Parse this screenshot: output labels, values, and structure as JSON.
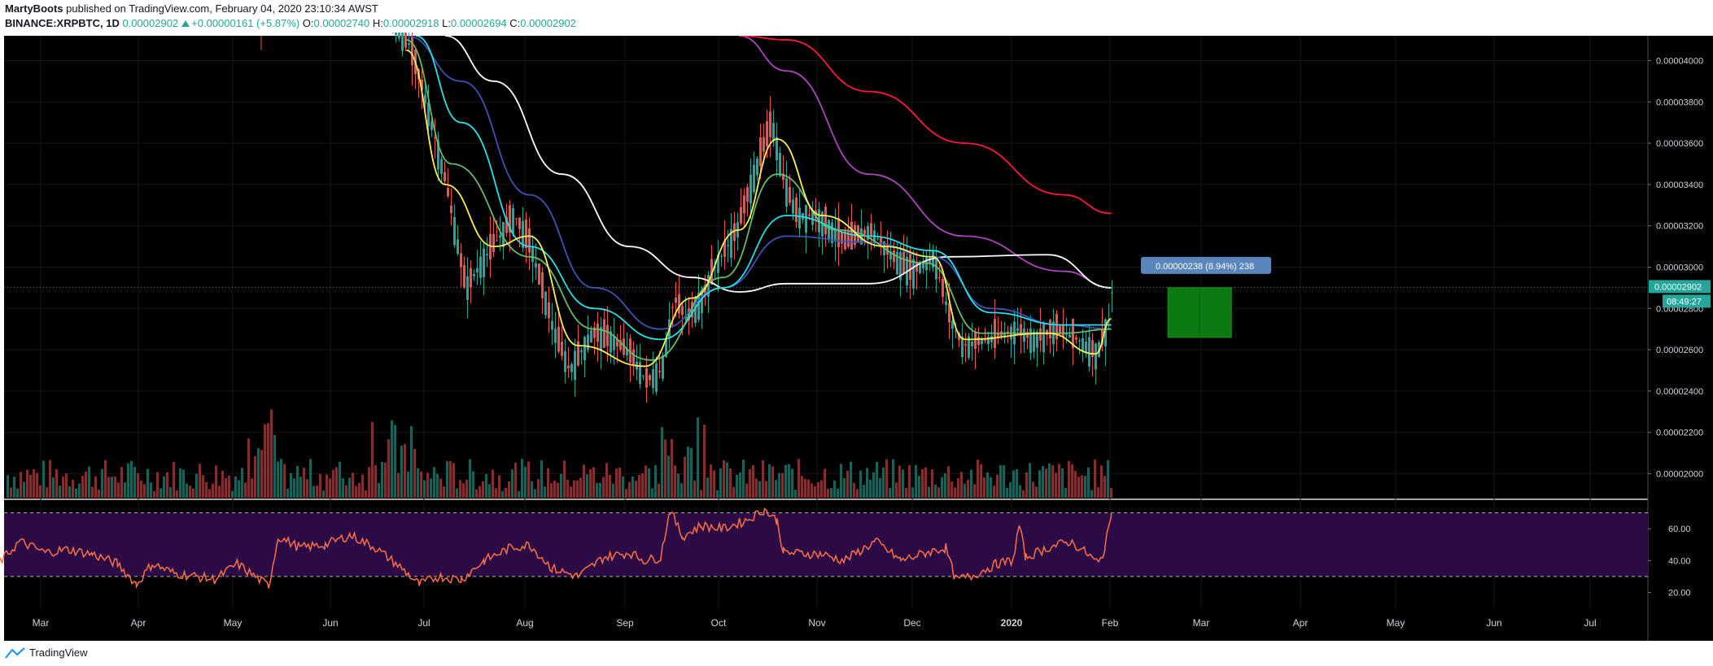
{
  "header": {
    "author": "MartyBoots",
    "published": "published on TradingView.com, February 04, 2020 23:10:34 AWST",
    "symbol": "BINANCE:XRPBTC, 1D",
    "last": "0.00002902",
    "change": "+0.00000161 (+5.87%)",
    "o_label": "O:",
    "o_value": "0.00002740",
    "h_label": "H:",
    "h_value": "0.00002918",
    "l_label": "L:",
    "l_value": "0.00002694",
    "c_label": "C:",
    "c_value": "0.00002902"
  },
  "footer": {
    "brand": "TradingView"
  },
  "colors": {
    "background": "#000000",
    "up": "#26a69a",
    "down": "#ef5350",
    "rsi_band": "#2b0a45",
    "rsi_line": "#ff7043",
    "ema_yellow": "#ffee58",
    "ema_green": "#66bb6a",
    "ema_cyan": "#26e0e8",
    "ema_blue": "#3f51b5",
    "ma_white": "#ffffff",
    "ma_purple": "#ab47bc",
    "ma_red": "#ff1744"
  },
  "chart_data": {
    "type": "candlestick",
    "price_axis": {
      "ticks": [
        "0.00004000",
        "0.00003800",
        "0.00003600",
        "0.00003400",
        "0.00003200",
        "0.00003000",
        "0.00002800",
        "0.00002600",
        "0.00002400",
        "0.00002200",
        "0.00002000"
      ],
      "range": [
        1.88e-05,
        4.12e-05
      ],
      "current_price_label": "0.00002902",
      "countdown_label": "08:49:27"
    },
    "rsi_axis": {
      "ticks": [
        "60.00",
        "40.00",
        "20.00"
      ],
      "range": [
        10,
        78
      ],
      "band": [
        30,
        70
      ]
    },
    "x_labels": [
      "Mar",
      "Apr",
      "May",
      "Jun",
      "Jul",
      "Aug",
      "Sep",
      "Oct",
      "Nov",
      "Dec",
      "2020",
      "Feb",
      "Mar",
      "Apr",
      "May",
      "Jun",
      "Jul"
    ],
    "price_path": [
      [
        "Jun 20",
        4.25e-05
      ],
      [
        "Jun 28",
        4.1e-05
      ],
      [
        "Jul 3",
        3.85e-05
      ],
      [
        "Jul 10",
        3.4e-05
      ],
      [
        "Jul 16",
        2.9e-05
      ],
      [
        "Jul 22",
        3.05e-05
      ],
      [
        "Jul 31",
        3.25e-05
      ],
      [
        "Aug 5",
        3.1e-05
      ],
      [
        "Aug 12",
        2.7e-05
      ],
      [
        "Aug 17",
        2.5e-05
      ],
      [
        "Aug 24",
        2.68e-05
      ],
      [
        "Aug 30",
        2.65e-05
      ],
      [
        "Sep 5",
        2.58e-05
      ],
      [
        "Sep 10",
        2.45e-05
      ],
      [
        "Sep 15",
        2.5e-05
      ],
      [
        "Sep 19",
        2.85e-05
      ],
      [
        "Sep 23",
        2.75e-05
      ],
      [
        "Sep 28",
        2.85e-05
      ],
      [
        "Oct 2",
        3e-05
      ],
      [
        "Oct 9",
        3.18e-05
      ],
      [
        "Oct 15",
        3.48e-05
      ],
      [
        "Oct 20",
        3.7e-05
      ],
      [
        "Oct 24",
        3.4e-05
      ],
      [
        "Oct 28",
        3.25e-05
      ],
      [
        "Nov 3",
        3.25e-05
      ],
      [
        "Nov 12",
        3.12e-05
      ],
      [
        "Nov 20",
        3.18e-05
      ],
      [
        "Nov 27",
        3.05e-05
      ],
      [
        "Dec 3",
        2.98e-05
      ],
      [
        "Dec 10",
        3.05e-05
      ],
      [
        "Dec 15",
        2.75e-05
      ],
      [
        "Dec 19",
        2.62e-05
      ],
      [
        "Dec 27",
        2.65e-05
      ],
      [
        "Jan 5",
        2.7e-05
      ],
      [
        "Jan 10",
        2.65e-05
      ],
      [
        "Jan 17",
        2.7e-05
      ],
      [
        "Jan 24",
        2.65e-05
      ],
      [
        "Jan 30",
        2.58e-05
      ],
      [
        "Feb 3",
        2.75e-05
      ],
      [
        "Feb 4",
        2.9e-05
      ]
    ],
    "moving_averages": [
      {
        "color": "#ab47bc",
        "points": [
          [
            "Oct 10",
            4.2e-05
          ],
          [
            "Oct 25",
            3.95e-05
          ],
          [
            "Nov 20",
            3.45e-05
          ],
          [
            "Dec 20",
            3.15e-05
          ],
          [
            "Jan 20",
            2.98e-05
          ],
          [
            "Feb 4",
            2.9e-05
          ]
        ]
      },
      {
        "color": "#ff1744",
        "points": [
          [
            "Oct 10",
            4.2e-05
          ],
          [
            "Oct 25",
            4.1e-05
          ],
          [
            "Nov 20",
            3.85e-05
          ],
          [
            "Dec 20",
            3.6e-05
          ],
          [
            "Jan 20",
            3.35e-05
          ],
          [
            "Feb 4",
            3.26e-05
          ]
        ]
      },
      {
        "color": "#ffffff",
        "points": [
          [
            "Jul 10",
            4.2e-05
          ],
          [
            "Jul 25",
            3.9e-05
          ],
          [
            "Aug 15",
            3.45e-05
          ],
          [
            "Sep 5",
            3.1e-05
          ],
          [
            "Sep 25",
            2.95e-05
          ],
          [
            "Oct 10",
            2.88e-05
          ],
          [
            "Oct 25",
            2.92e-05
          ],
          [
            "Nov 20",
            2.92e-05
          ],
          [
            "Dec 15",
            3.05e-05
          ],
          [
            "Jan 15",
            3.06e-05
          ],
          [
            "Feb 4",
            2.9e-05
          ]
        ]
      },
      {
        "color": "#3f51b5",
        "points": [
          [
            "Jun 28",
            4.25e-05
          ],
          [
            "Jul 15",
            3.9e-05
          ],
          [
            "Aug 5",
            3.35e-05
          ],
          [
            "Aug 25",
            2.9e-05
          ],
          [
            "Sep 15",
            2.7e-05
          ],
          [
            "Oct 5",
            2.9e-05
          ],
          [
            "Oct 25",
            3.15e-05
          ],
          [
            "Nov 20",
            3.12e-05
          ],
          [
            "Dec 10",
            3.05e-05
          ],
          [
            "Dec 28",
            2.8e-05
          ],
          [
            "Jan 20",
            2.72e-05
          ],
          [
            "Feb 4",
            2.7e-05
          ]
        ]
      },
      {
        "color": "#26e0e8",
        "points": [
          [
            "Jul 1",
            4.2e-05
          ],
          [
            "Jul 15",
            3.7e-05
          ],
          [
            "Aug 5",
            3.1e-05
          ],
          [
            "Aug 25",
            2.8e-05
          ],
          [
            "Sep 15",
            2.65e-05
          ],
          [
            "Oct 5",
            2.9e-05
          ],
          [
            "Oct 25",
            3.25e-05
          ],
          [
            "Nov 20",
            3.15e-05
          ],
          [
            "Dec 10",
            3.08e-05
          ],
          [
            "Dec 28",
            2.78e-05
          ],
          [
            "Jan 20",
            2.72e-05
          ],
          [
            "Feb 4",
            2.72e-05
          ]
        ]
      },
      {
        "color": "#66bb6a",
        "points": [
          [
            "Jun 28",
            4.1e-05
          ],
          [
            "Jul 12",
            3.5e-05
          ],
          [
            "Aug 5",
            3.05e-05
          ],
          [
            "Aug 25",
            2.7e-05
          ],
          [
            "Sep 12",
            2.55e-05
          ],
          [
            "Oct 5",
            2.95e-05
          ],
          [
            "Oct 22",
            3.45e-05
          ],
          [
            "Nov 10",
            3.18e-05
          ],
          [
            "Dec 8",
            3.02e-05
          ],
          [
            "Dec 25",
            2.68e-05
          ],
          [
            "Jan 20",
            2.68e-05
          ],
          [
            "Feb 4",
            2.7e-05
          ]
        ]
      },
      {
        "color": "#ffee58",
        "points": [
          [
            "Jun 28",
            4.05e-05
          ],
          [
            "Jul 10",
            3.4e-05
          ],
          [
            "Jul 25",
            3.1e-05
          ],
          [
            "Aug 5",
            3.15e-05
          ],
          [
            "Aug 20",
            2.62e-05
          ],
          [
            "Sep 10",
            2.52e-05
          ],
          [
            "Sep 25",
            2.85e-05
          ],
          [
            "Oct 10",
            3.18e-05
          ],
          [
            "Oct 22",
            3.62e-05
          ],
          [
            "Nov 5",
            3.25e-05
          ],
          [
            "Nov 25",
            3.1e-05
          ],
          [
            "Dec 10",
            3.05e-05
          ],
          [
            "Dec 20",
            2.65e-05
          ],
          [
            "Jan 15",
            2.68e-05
          ],
          [
            "Jan 30",
            2.58e-05
          ],
          [
            "Feb 4",
            2.75e-05
          ]
        ]
      }
    ],
    "measure_box": {
      "label": "0.00000238 (8.94%) 238",
      "from": [
        "Feb 22",
        2.9e-05
      ],
      "to": [
        "Mar 13",
        2.66e-05
      ]
    },
    "rsi_path": [
      [
        "Feb 22",
        38
      ],
      [
        "Feb 27",
        52
      ],
      [
        "Mar 5",
        45
      ],
      [
        "Mar 12",
        47
      ],
      [
        "Mar 20",
        44
      ],
      [
        "Mar 28",
        38
      ],
      [
        "Apr 3",
        25
      ],
      [
        "Apr 8",
        38
      ],
      [
        "Apr 15",
        32
      ],
      [
        "Apr 22",
        30
      ],
      [
        "Apr 28",
        28
      ],
      [
        "May 5",
        38
      ],
      [
        "May 12",
        28
      ],
      [
        "May 15",
        24
      ],
      [
        "May 18",
        55
      ],
      [
        "May 25",
        48
      ],
      [
        "Jun 2",
        50
      ],
      [
        "Jun 10",
        56
      ],
      [
        "Jun 18",
        48
      ],
      [
        "Jun 26",
        36
      ],
      [
        "Jul 2",
        25
      ],
      [
        "Jul 8",
        30
      ],
      [
        "Jul 15",
        28
      ],
      [
        "Jul 22",
        40
      ],
      [
        "Jul 30",
        48
      ],
      [
        "Aug 5",
        50
      ],
      [
        "Aug 12",
        35
      ],
      [
        "Aug 20",
        30
      ],
      [
        "Aug 28",
        42
      ],
      [
        "Sep 5",
        45
      ],
      [
        "Sep 10",
        40
      ],
      [
        "Sep 15",
        42
      ],
      [
        "Sep 18",
        72
      ],
      [
        "Sep 22",
        55
      ],
      [
        "Sep 28",
        62
      ],
      [
        "Oct 5",
        60
      ],
      [
        "Oct 12",
        65
      ],
      [
        "Oct 18",
        72
      ],
      [
        "Oct 22",
        65
      ],
      [
        "Oct 24",
        45
      ],
      [
        "Nov 5",
        44
      ],
      [
        "Nov 12",
        40
      ],
      [
        "Nov 22",
        52
      ],
      [
        "Nov 30",
        40
      ],
      [
        "Dec 8",
        45
      ],
      [
        "Dec 14",
        48
      ],
      [
        "Dec 17",
        28
      ],
      [
        "Dec 22",
        30
      ],
      [
        "Dec 30",
        38
      ],
      [
        "Jan 4",
        40
      ],
      [
        "Jan 6",
        62
      ],
      [
        "Jan 8",
        42
      ],
      [
        "Jan 15",
        48
      ],
      [
        "Jan 22",
        52
      ],
      [
        "Jan 27",
        45
      ],
      [
        "Jan 31",
        38
      ],
      [
        "Feb 2",
        48
      ],
      [
        "Feb 4",
        70
      ]
    ]
  }
}
